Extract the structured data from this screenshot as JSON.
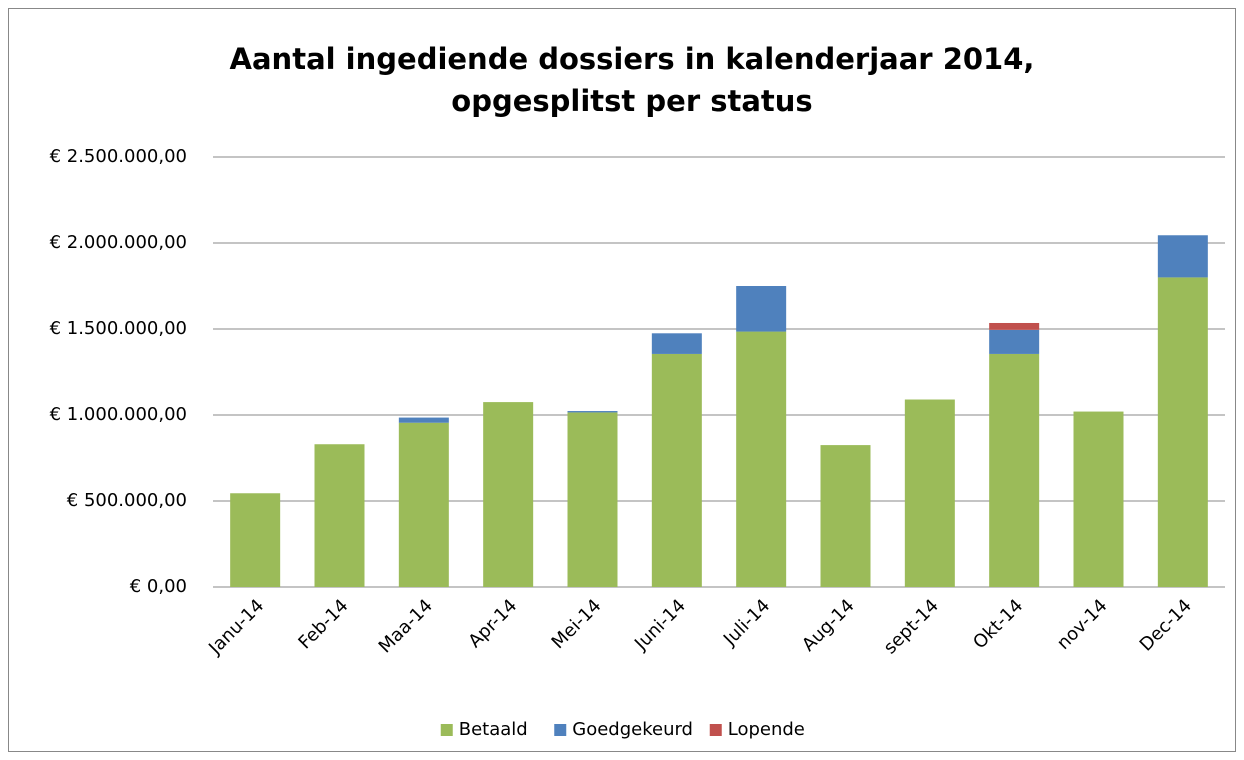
{
  "chart_data": {
    "type": "stacked_bar",
    "title": "Aantal ingediende dossiers in kalenderjaar 2014, opgesplitst per status",
    "categories": [
      "Janu-14",
      "Feb-14",
      "Maa-14",
      "Apr-14",
      "Mei-14",
      "Juni-14",
      "Juli-14",
      "Aug-14",
      "sept-14",
      "Okt-14",
      "nov-14",
      "Dec-14"
    ],
    "series": [
      {
        "name": "Betaald",
        "color": "#9bbb59",
        "values": [
          545000,
          830000,
          955000,
          1075000,
          1015000,
          1355000,
          1485000,
          825000,
          1090000,
          1355000,
          1020000,
          1800000
        ]
      },
      {
        "name": "Goedgekeurd",
        "color": "#4f81bd",
        "values": [
          0,
          0,
          30000,
          0,
          8000,
          120000,
          265000,
          0,
          0,
          140000,
          0,
          245000
        ]
      },
      {
        "name": "Lopende",
        "color": "#c0504d",
        "values": [
          0,
          0,
          0,
          0,
          0,
          0,
          0,
          0,
          0,
          40000,
          0,
          0
        ]
      }
    ],
    "ylim": [
      0,
      2500000
    ],
    "yticks": [
      {
        "value": 0,
        "label": "€ 0,00"
      },
      {
        "value": 500000,
        "label": "€ 500.000,00"
      },
      {
        "value": 1000000,
        "label": "€ 1.000.000,00"
      },
      {
        "value": 1500000,
        "label": "€ 1.500.000,00"
      },
      {
        "value": 2000000,
        "label": "€ 2.000.000,00"
      },
      {
        "value": 2500000,
        "label": "€ 2.500.000,00"
      }
    ],
    "grid": true,
    "legend": "bottom"
  }
}
